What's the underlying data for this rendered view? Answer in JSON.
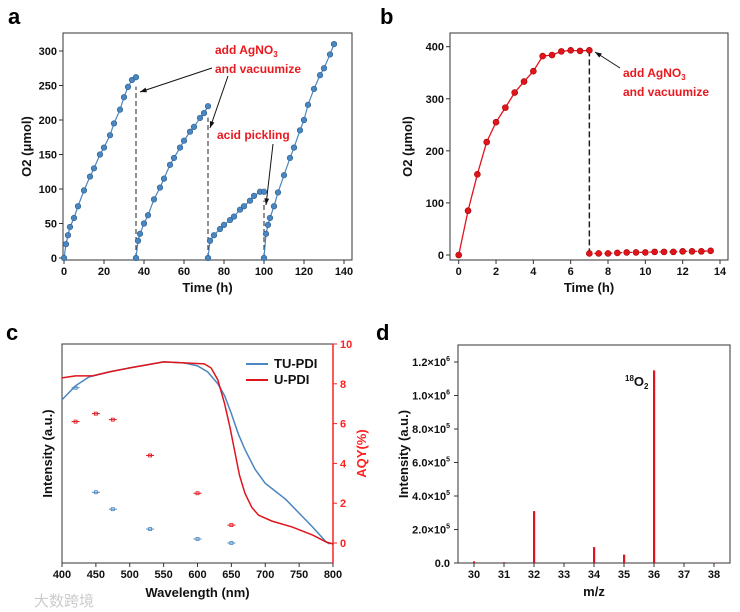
{
  "colors": {
    "blue": "#4a86c0",
    "red": "#e0141d",
    "axisRed": "#ff2020"
  },
  "watermark": "大数跨境",
  "chart_data": [
    {
      "panel": "a",
      "type": "scatter",
      "title": "",
      "xlabel": "Time (h)",
      "ylabel": "O2 (μmol)",
      "xlim": [
        0,
        143
      ],
      "ylim": [
        0,
        326
      ],
      "xticks": [
        0,
        20,
        40,
        60,
        80,
        100,
        120,
        140
      ],
      "yticks": [
        0,
        50,
        100,
        150,
        200,
        250,
        300
      ],
      "series": [
        {
          "name": "cycle1",
          "points": [
            [
              0,
              0
            ],
            [
              1,
              20
            ],
            [
              2,
              33
            ],
            [
              3,
              45
            ],
            [
              5,
              58
            ],
            [
              7,
              75
            ],
            [
              10,
              98
            ],
            [
              13,
              118
            ],
            [
              15,
              130
            ],
            [
              18,
              150
            ],
            [
              20,
              160
            ],
            [
              23,
              178
            ],
            [
              25,
              195
            ],
            [
              28,
              215
            ],
            [
              30,
              233
            ],
            [
              32,
              248
            ],
            [
              34,
              258
            ],
            [
              36,
              262
            ]
          ]
        },
        {
          "name": "cycle2",
          "points": [
            [
              36,
              0
            ],
            [
              37,
              25
            ],
            [
              38,
              35
            ],
            [
              40,
              50
            ],
            [
              42,
              62
            ],
            [
              45,
              85
            ],
            [
              48,
              102
            ],
            [
              50,
              115
            ],
            [
              53,
              135
            ],
            [
              55,
              145
            ],
            [
              58,
              160
            ],
            [
              60,
              170
            ],
            [
              63,
              183
            ],
            [
              65,
              190
            ],
            [
              68,
              203
            ],
            [
              70,
              210
            ],
            [
              72,
              220
            ]
          ]
        },
        {
          "name": "cycle3",
          "points": [
            [
              72,
              0
            ],
            [
              73,
              25
            ],
            [
              75,
              33
            ],
            [
              78,
              42
            ],
            [
              80,
              48
            ],
            [
              83,
              55
            ],
            [
              85,
              60
            ],
            [
              88,
              70
            ],
            [
              90,
              75
            ],
            [
              93,
              83
            ],
            [
              95,
              90
            ],
            [
              98,
              96
            ],
            [
              100,
              96
            ]
          ]
        },
        {
          "name": "cycle4",
          "points": [
            [
              100,
              0
            ],
            [
              101,
              35
            ],
            [
              102,
              48
            ],
            [
              103,
              58
            ],
            [
              105,
              75
            ],
            [
              107,
              95
            ],
            [
              110,
              120
            ],
            [
              113,
              145
            ],
            [
              115,
              160
            ],
            [
              118,
              185
            ],
            [
              120,
              200
            ],
            [
              122,
              222
            ],
            [
              125,
              245
            ],
            [
              128,
              265
            ],
            [
              130,
              275
            ],
            [
              133,
              295
            ],
            [
              135,
              310
            ]
          ]
        }
      ],
      "vlines": [
        36,
        72,
        100
      ],
      "annotations": [
        {
          "line1": "add AgNO",
          "sub": "3",
          "line2": "and vacuumize"
        },
        {
          "text": "acid pickling"
        }
      ]
    },
    {
      "panel": "b",
      "type": "line",
      "xlabel": "Time (h)",
      "ylabel": "O2 (μmol)",
      "xlim": [
        -0.6,
        14
      ],
      "ylim": [
        -8,
        432
      ],
      "xticks": [
        0,
        2,
        4,
        6,
        8,
        10,
        12,
        14
      ],
      "yticks": [
        0,
        100,
        200,
        300,
        400
      ],
      "series": [
        {
          "name": "before",
          "points": [
            [
              0,
              0
            ],
            [
              0.5,
              85
            ],
            [
              1,
              155
            ],
            [
              1.5,
              217
            ],
            [
              2,
              255
            ],
            [
              2.5,
              283
            ],
            [
              3,
              312
            ],
            [
              3.5,
              333
            ],
            [
              4,
              353
            ],
            [
              4.5,
              382
            ],
            [
              5,
              384
            ],
            [
              5.5,
              391
            ],
            [
              6,
              393
            ],
            [
              6.5,
              392
            ],
            [
              7,
              393
            ]
          ]
        },
        {
          "name": "after",
          "points": [
            [
              7,
              3
            ],
            [
              7.5,
              3
            ],
            [
              8,
              3
            ],
            [
              8.5,
              4
            ],
            [
              9,
              5
            ],
            [
              9.5,
              5
            ],
            [
              10,
              5
            ],
            [
              10.5,
              6
            ],
            [
              11,
              6
            ],
            [
              11.5,
              6
            ],
            [
              12,
              7
            ],
            [
              12.5,
              7
            ],
            [
              13,
              7
            ],
            [
              13.5,
              8
            ]
          ]
        }
      ],
      "vline": 7,
      "annotation": {
        "line1": "add AgNO",
        "sub": "3",
        "line2": "and vacuumize"
      }
    },
    {
      "panel": "c",
      "type": "line",
      "xlabel": "Wavelength (nm)",
      "ylabel": "Intensity (a.u.)",
      "y2label": "AQY(%)",
      "xlim": [
        400,
        800
      ],
      "y2lim": [
        -1,
        10
      ],
      "xticks": [
        400,
        450,
        500,
        550,
        600,
        650,
        700,
        750,
        800
      ],
      "y2ticks": [
        0,
        2,
        4,
        6,
        8,
        10
      ],
      "legend": {
        "placement": "top-right",
        "entries": [
          "TU-PDI",
          "U-PDI"
        ]
      },
      "series": [
        {
          "name": "TU-PDI",
          "points": [
            [
              400,
              7.2
            ],
            [
              420,
              7.9
            ],
            [
              440,
              8.35
            ],
            [
              470,
              8.6
            ],
            [
              500,
              8.8
            ],
            [
              550,
              9.1
            ],
            [
              580,
              9.05
            ],
            [
              600,
              8.9
            ],
            [
              615,
              8.6
            ],
            [
              630,
              8.0
            ],
            [
              640,
              7.4
            ],
            [
              650,
              6.5
            ],
            [
              660,
              5.5
            ],
            [
              670,
              4.7
            ],
            [
              685,
              3.7
            ],
            [
              700,
              3.0
            ],
            [
              715,
              2.6
            ],
            [
              730,
              2.2
            ],
            [
              750,
              1.5
            ],
            [
              770,
              0.8
            ],
            [
              790,
              0.05
            ],
            [
              795,
              -0.05
            ]
          ]
        },
        {
          "name": "U-PDI",
          "points": [
            [
              400,
              8.3
            ],
            [
              420,
              8.4
            ],
            [
              445,
              8.4
            ],
            [
              470,
              8.6
            ],
            [
              500,
              8.8
            ],
            [
              550,
              9.1
            ],
            [
              580,
              9.05
            ],
            [
              610,
              9.0
            ],
            [
              620,
              8.8
            ],
            [
              630,
              8.2
            ],
            [
              640,
              7.0
            ],
            [
              648,
              5.8
            ],
            [
              655,
              4.6
            ],
            [
              662,
              3.4
            ],
            [
              670,
              2.5
            ],
            [
              680,
              1.8
            ],
            [
              690,
              1.4
            ],
            [
              710,
              1.1
            ],
            [
              740,
              0.8
            ],
            [
              770,
              0.4
            ],
            [
              790,
              0.05
            ],
            [
              800,
              -0.05
            ]
          ]
        }
      ],
      "aqy_points": [
        {
          "series": "U-PDI",
          "points": [
            [
              420,
              6.1
            ],
            [
              450,
              6.5
            ],
            [
              475,
              6.2
            ],
            [
              530,
              4.4
            ],
            [
              600,
              2.5
            ],
            [
              650,
              0.9
            ]
          ]
        },
        {
          "series": "TU-PDI",
          "points": [
            [
              420,
              7.8
            ],
            [
              450,
              2.55
            ],
            [
              475,
              1.7
            ],
            [
              530,
              0.7
            ],
            [
              600,
              0.2
            ],
            [
              650,
              0.0
            ]
          ]
        }
      ]
    },
    {
      "panel": "d",
      "type": "bar",
      "xlabel": "m/z",
      "ylabel": "Intensity (a.u.)",
      "xlim": [
        29.5,
        38.5
      ],
      "ylim": [
        0,
        1300000
      ],
      "xticks": [
        30,
        31,
        32,
        33,
        34,
        35,
        36,
        37,
        38
      ],
      "yticks": [
        {
          "v": 0,
          "label": "0.0"
        },
        {
          "v": 200000,
          "label": "2.0×10",
          "exp": "5"
        },
        {
          "v": 400000,
          "label": "4.0×10",
          "exp": "5"
        },
        {
          "v": 600000,
          "label": "6.0×10",
          "exp": "5"
        },
        {
          "v": 800000,
          "label": "8.0×10",
          "exp": "5"
        },
        {
          "v": 1000000,
          "label": "1.0×10",
          "exp": "6"
        },
        {
          "v": 1200000,
          "label": "1.2×10",
          "exp": "6"
        }
      ],
      "categories": [
        30,
        31,
        32,
        34,
        35,
        36,
        38
      ],
      "values": [
        10000,
        5000,
        310000,
        95000,
        50000,
        1150000,
        3000
      ],
      "annotation": {
        "sup": "18",
        "text": "O",
        "sub": "2"
      }
    }
  ]
}
